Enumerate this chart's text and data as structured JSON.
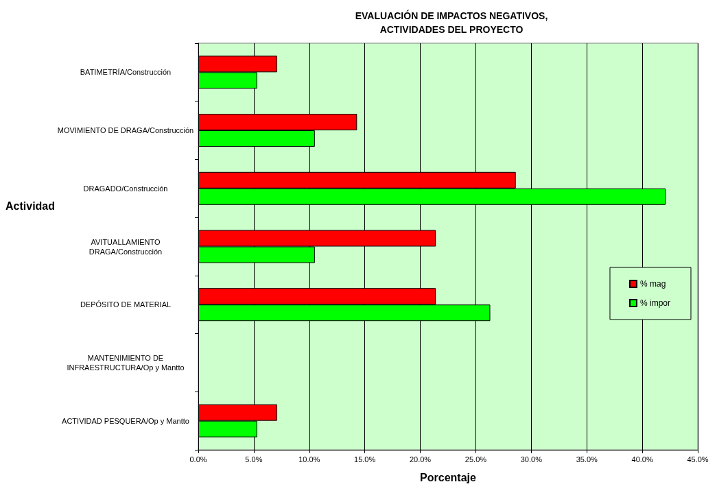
{
  "chart_data": {
    "type": "bar",
    "orientation": "horizontal",
    "title": "EVALUACIÓN DE IMPACTOS NEGATIVOS,\nACTIVIDADES DEL PROYECTO",
    "xlabel": "Porcentaje",
    "ylabel": "Actividad",
    "categories": [
      "BATIMETRÍA/Construcción",
      "MOVIMIENTO DE DRAGA/Construcción",
      "DRAGADO/Construcción",
      "AVITUALLAMIENTO\nDRAGA/Construcción",
      "DEPÓSITO DE MATERIAL",
      "MANTENIMIENTO DE\nINFRAESTRUCTURA/Op y Mantto",
      "ACTIVIDAD PESQUERA/Op y Mantto"
    ],
    "series": [
      {
        "name": "% mag",
        "color": "#ff0000",
        "values": [
          7.1,
          14.3,
          28.6,
          21.4,
          21.4,
          0,
          7.1
        ]
      },
      {
        "name": "% impor",
        "color": "#00ff00",
        "values": [
          5.3,
          10.5,
          42.1,
          10.5,
          26.3,
          0,
          5.3
        ]
      }
    ],
    "xlim": [
      0,
      45
    ],
    "xticks": [
      {
        "value": 0,
        "label": "0.0%"
      },
      {
        "value": 5,
        "label": "5.0%"
      },
      {
        "value": 10,
        "label": "10.0%"
      },
      {
        "value": 15,
        "label": "15.0%"
      },
      {
        "value": 20,
        "label": "20.0%"
      },
      {
        "value": 25,
        "label": "25.0%"
      },
      {
        "value": 30,
        "label": "30.0%"
      },
      {
        "value": 35,
        "label": "35.0%"
      },
      {
        "value": 40,
        "label": "40.0%"
      },
      {
        "value": 45,
        "label": "45.0%"
      }
    ],
    "grid": "x",
    "legend": "right"
  }
}
